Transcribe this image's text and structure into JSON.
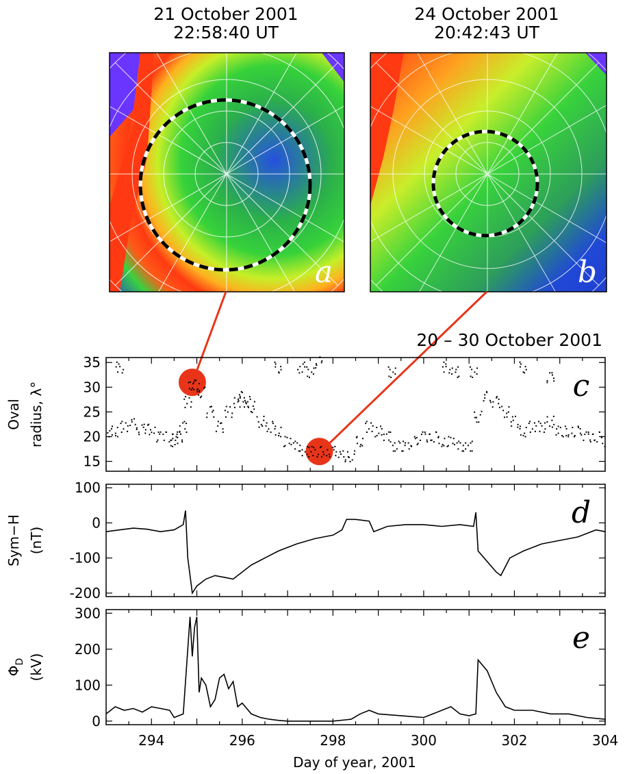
{
  "panel_a": {
    "title_line1": "21 October 2001",
    "title_line2": "22:58:40 UT",
    "letter": "a",
    "oval_radius_deg": 31
  },
  "panel_b": {
    "title_line1": "24 October 2001",
    "title_line2": "20:42:43 UT",
    "letter": "b",
    "oval_radius_deg": 17
  },
  "time_title": "20 – 30 October 2001",
  "colors": {
    "trace": "#000000",
    "highlight": "#e8351a",
    "connector": "#e8351a",
    "oval_dash_a": "#000000",
    "oval_dash_b": "#ffffff",
    "map_blue": "#1f3fd0",
    "map_green": "#2fc42f",
    "map_yellow": "#f2e81e",
    "map_red": "#ff3a12",
    "map_violet": "#6a35ff"
  },
  "x_label": "Day of year, 2001",
  "chart_data": [
    {
      "type": "scatter",
      "panel": "c",
      "letter": "c",
      "ylabel_line1": "Oval",
      "ylabel_line2": "radius, λ°",
      "xlim": [
        293,
        304
      ],
      "ylim": [
        13,
        36
      ],
      "yticks": [
        15,
        20,
        25,
        30,
        35
      ],
      "xticks": [
        294,
        296,
        298,
        300,
        302,
        304
      ],
      "highlight_points": [
        {
          "x": 294.9,
          "y": 31
        },
        {
          "x": 297.7,
          "y": 17
        }
      ],
      "series": [
        {
          "values_xy": [
            [
              293.0,
              20.5
            ],
            [
              293.2,
              21
            ],
            [
              293.4,
              22
            ],
            [
              293.6,
              22.5
            ],
            [
              293.8,
              21.5
            ],
            [
              294.0,
              21.5
            ],
            [
              294.2,
              20
            ],
            [
              294.4,
              20
            ],
            [
              294.5,
              19
            ],
            [
              294.6,
              20
            ],
            [
              294.7,
              22
            ],
            [
              294.8,
              27
            ],
            [
              294.9,
              30.5
            ],
            [
              295.0,
              30
            ],
            [
              295.1,
              29
            ],
            [
              295.3,
              25
            ],
            [
              295.5,
              22
            ],
            [
              295.7,
              25
            ],
            [
              295.9,
              27
            ],
            [
              296.0,
              28
            ],
            [
              296.1,
              27
            ],
            [
              296.2,
              26
            ],
            [
              296.4,
              23
            ],
            [
              296.6,
              22
            ],
            [
              296.8,
              21
            ],
            [
              297.0,
              19
            ],
            [
              297.2,
              18
            ],
            [
              297.4,
              17
            ],
            [
              297.6,
              17
            ],
            [
              297.8,
              17
            ],
            [
              298.0,
              17
            ],
            [
              298.2,
              16
            ],
            [
              298.4,
              16
            ],
            [
              298.6,
              19
            ],
            [
              298.8,
              22
            ],
            [
              299.0,
              21
            ],
            [
              299.2,
              20
            ],
            [
              299.4,
              18
            ],
            [
              299.6,
              18
            ],
            [
              299.8,
              19
            ],
            [
              300.0,
              20
            ],
            [
              300.2,
              20
            ],
            [
              300.4,
              19
            ],
            [
              300.6,
              19
            ],
            [
              300.8,
              18
            ],
            [
              301.0,
              18
            ],
            [
              301.2,
              24
            ],
            [
              301.4,
              28
            ],
            [
              301.6,
              27
            ],
            [
              301.8,
              25
            ],
            [
              302.0,
              23
            ],
            [
              302.2,
              21
            ],
            [
              302.4,
              22
            ],
            [
              302.6,
              22
            ],
            [
              302.8,
              23
            ],
            [
              303.0,
              21
            ],
            [
              303.2,
              21
            ],
            [
              303.4,
              21
            ],
            [
              303.6,
              20
            ],
            [
              303.8,
              20
            ],
            [
              304.0,
              19
            ],
            [
              293.3,
              34
            ],
            [
              297.3,
              34
            ],
            [
              297.5,
              33
            ],
            [
              297.7,
              35
            ],
            [
              296.8,
              34
            ],
            [
              300.5,
              34
            ],
            [
              300.7,
              33
            ],
            [
              302.8,
              32
            ],
            [
              299.3,
              33
            ],
            [
              301.1,
              33
            ],
            [
              302.2,
              34
            ]
          ]
        }
      ]
    },
    {
      "type": "line",
      "panel": "d",
      "letter": "d",
      "ylabel_line1": "Sym−H",
      "ylabel_line2": "(nT)",
      "xlim": [
        293,
        304
      ],
      "ylim": [
        -210,
        110
      ],
      "yticks": [
        100,
        0,
        -100,
        -200
      ],
      "xticks": [
        294,
        296,
        298,
        300,
        302,
        304
      ],
      "series": [
        {
          "x": [
            293.0,
            293.3,
            293.6,
            293.9,
            294.2,
            294.5,
            294.7,
            294.75,
            294.8,
            294.9,
            295.0,
            295.2,
            295.4,
            295.6,
            295.8,
            296.0,
            296.2,
            296.5,
            296.8,
            297.2,
            297.6,
            298.0,
            298.2,
            298.3,
            298.5,
            298.8,
            298.9,
            299.2,
            299.6,
            300.0,
            300.4,
            300.8,
            301.1,
            301.15,
            301.2,
            301.4,
            301.6,
            301.7,
            301.9,
            302.2,
            302.6,
            303.0,
            303.4,
            303.8,
            304.0
          ],
          "y": [
            -25,
            -20,
            -15,
            -18,
            -25,
            -20,
            -5,
            35,
            -100,
            -200,
            -180,
            -160,
            -150,
            -155,
            -160,
            -140,
            -120,
            -100,
            -80,
            -60,
            -45,
            -35,
            -20,
            10,
            10,
            5,
            -25,
            -10,
            -5,
            -5,
            -10,
            -5,
            -10,
            30,
            -80,
            -110,
            -140,
            -150,
            -100,
            -80,
            -60,
            -50,
            -40,
            -20,
            -25
          ]
        }
      ]
    },
    {
      "type": "line",
      "panel": "e",
      "letter": "e",
      "ylabel_line1": "Φ",
      "ylabel_sub": "D",
      "ylabel_line2": "(kV)",
      "xlim": [
        293,
        304
      ],
      "ylim": [
        -10,
        310
      ],
      "yticks": [
        300,
        200,
        100,
        0
      ],
      "xticks": [
        294,
        296,
        298,
        300,
        302,
        304
      ],
      "series": [
        {
          "x": [
            293.0,
            293.2,
            293.4,
            293.6,
            293.8,
            294.0,
            294.2,
            294.4,
            294.5,
            294.7,
            294.8,
            294.85,
            294.9,
            294.95,
            295.0,
            295.05,
            295.1,
            295.2,
            295.3,
            295.4,
            295.5,
            295.6,
            295.7,
            295.8,
            295.9,
            296.0,
            296.2,
            296.4,
            296.6,
            296.8,
            297.0,
            297.5,
            298.0,
            298.4,
            298.6,
            298.8,
            299.0,
            299.5,
            300.0,
            300.2,
            300.4,
            300.6,
            300.8,
            301.0,
            301.15,
            301.2,
            301.4,
            301.6,
            301.8,
            302.0,
            302.4,
            302.8,
            303.2,
            303.6,
            304.0
          ],
          "y": [
            20,
            40,
            30,
            35,
            25,
            40,
            35,
            30,
            10,
            20,
            200,
            290,
            180,
            260,
            290,
            80,
            120,
            100,
            40,
            60,
            120,
            130,
            90,
            110,
            40,
            50,
            20,
            10,
            5,
            2,
            0,
            0,
            0,
            5,
            20,
            30,
            20,
            15,
            10,
            20,
            30,
            40,
            20,
            15,
            20,
            170,
            140,
            80,
            40,
            30,
            30,
            20,
            20,
            10,
            5
          ]
        }
      ]
    }
  ]
}
